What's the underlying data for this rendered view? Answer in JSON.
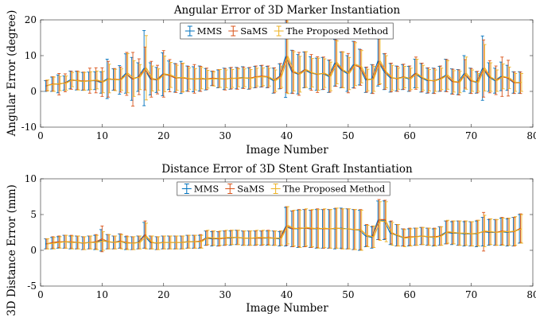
{
  "chart_data": [
    {
      "type": "line",
      "title": "Angular Error of 3D Marker Instantiation",
      "xlabel": "Image Number",
      "ylabel": "Angular Error (degree)",
      "xlim": [
        0,
        80
      ],
      "ylim": [
        -10,
        20
      ],
      "xticks": [
        0,
        10,
        20,
        30,
        40,
        50,
        60,
        70,
        80
      ],
      "yticks": [
        -10,
        0,
        10,
        20
      ],
      "legend_position": "top-center",
      "x_start": 1,
      "series": [
        {
          "name": "MMS",
          "color": "#0072BD",
          "values": [
            1.5,
            2.0,
            2.1,
            2.3,
            3.2,
            3.0,
            2.8,
            2.9,
            3.0,
            2.5,
            3.5,
            3.3,
            3.2,
            5.0,
            3.5,
            4.0,
            6.5,
            3.5,
            3.2,
            4.8,
            4.5,
            3.8,
            3.9,
            3.6,
            3.4,
            3.6,
            3.4,
            3.6,
            3.5,
            3.5,
            3.6,
            3.7,
            3.9,
            3.6,
            4.0,
            4.2,
            4.0,
            3.0,
            4.2,
            9.8,
            5.5,
            4.8,
            6.0,
            5.2,
            4.8,
            5.0,
            4.2,
            8.0,
            6.0,
            5.0,
            7.5,
            6.8,
            3.2,
            3.5,
            8.5,
            5.5,
            3.8,
            3.6,
            4.0,
            3.5,
            5.0,
            3.8,
            3.0,
            3.0,
            3.5,
            4.5,
            2.8,
            2.6,
            5.0,
            3.0,
            2.5,
            6.5,
            4.0,
            3.0,
            4.2,
            3.8,
            2.5,
            2.5
          ],
          "errors": [
            1.5,
            2.0,
            2.5,
            2.0,
            2.5,
            2.6,
            2.5,
            2.5,
            2.5,
            3.0,
            5.5,
            3.0,
            4.0,
            5.5,
            6.0,
            4.0,
            10.5,
            4.5,
            3.5,
            6.0,
            4.0,
            4.0,
            4.5,
            3.5,
            3.5,
            3.5,
            3.0,
            2.0,
            2.5,
            3.0,
            3.0,
            3.0,
            3.0,
            3.0,
            3.0,
            3.0,
            3.0,
            3.5,
            3.5,
            11.5,
            6.0,
            5.5,
            5.0,
            4.5,
            4.5,
            4.5,
            4.5,
            6.5,
            5.0,
            5.0,
            6.5,
            5.0,
            3.5,
            4.0,
            7.0,
            5.0,
            4.0,
            3.5,
            3.5,
            3.5,
            4.0,
            4.0,
            3.5,
            3.5,
            3.5,
            4.5,
            3.5,
            3.5,
            5.0,
            3.5,
            3.0,
            9.0,
            4.0,
            3.5,
            4.0,
            3.5,
            3.0,
            3.0
          ]
        },
        {
          "name": "SaMS",
          "color": "#D95319",
          "values": [
            1.6,
            2.1,
            2.0,
            2.4,
            3.1,
            3.1,
            2.9,
            3.0,
            3.1,
            2.6,
            3.4,
            3.4,
            3.3,
            4.9,
            3.4,
            4.1,
            6.4,
            3.4,
            3.3,
            4.9,
            4.4,
            3.7,
            3.8,
            3.5,
            3.5,
            3.5,
            3.5,
            3.7,
            3.6,
            3.4,
            3.7,
            3.6,
            3.8,
            3.7,
            4.1,
            4.3,
            4.1,
            3.1,
            4.3,
            9.7,
            5.4,
            4.9,
            6.1,
            5.3,
            4.7,
            5.1,
            4.3,
            7.9,
            6.1,
            5.1,
            7.4,
            6.7,
            3.3,
            3.4,
            8.4,
            5.6,
            3.9,
            3.5,
            4.1,
            3.6,
            5.1,
            3.9,
            3.1,
            2.9,
            3.6,
            4.4,
            2.7,
            2.5,
            4.9,
            2.9,
            2.6,
            6.4,
            4.1,
            3.1,
            4.1,
            3.7,
            2.4,
            2.4
          ],
          "errors": [
            1.5,
            2.0,
            3.0,
            2.5,
            2.5,
            2.6,
            2.5,
            3.5,
            3.5,
            4.0,
            5.0,
            3.0,
            3.5,
            6.0,
            7.5,
            5.0,
            6.0,
            5.0,
            4.0,
            6.5,
            4.5,
            4.0,
            4.0,
            3.5,
            4.0,
            3.5,
            3.0,
            2.0,
            2.5,
            3.0,
            3.0,
            3.0,
            3.0,
            3.0,
            3.0,
            3.0,
            3.0,
            3.5,
            3.5,
            10.0,
            6.0,
            6.0,
            5.0,
            5.0,
            5.0,
            4.5,
            4.5,
            6.5,
            5.0,
            5.5,
            6.5,
            5.0,
            3.5,
            4.0,
            6.5,
            5.0,
            4.0,
            3.5,
            3.5,
            3.5,
            4.5,
            4.0,
            3.5,
            3.5,
            3.5,
            4.5,
            3.5,
            3.5,
            4.0,
            3.5,
            3.0,
            8.0,
            4.5,
            4.0,
            5.5,
            5.0,
            3.0,
            3.0
          ]
        },
        {
          "name": "The Proposed Method",
          "color": "#EDB120",
          "values": [
            1.7,
            2.0,
            2.2,
            2.3,
            3.3,
            2.9,
            2.8,
            3.0,
            3.2,
            2.6,
            3.6,
            3.2,
            3.3,
            5.1,
            3.6,
            4.0,
            6.6,
            3.6,
            3.3,
            4.9,
            4.6,
            3.8,
            3.9,
            3.6,
            3.4,
            3.7,
            3.4,
            3.5,
            3.6,
            3.5,
            3.6,
            3.8,
            3.8,
            3.6,
            4.0,
            4.1,
            4.0,
            3.0,
            4.1,
            9.9,
            5.6,
            4.8,
            6.1,
            5.2,
            4.8,
            5.1,
            4.2,
            8.1,
            6.0,
            5.0,
            7.6,
            6.9,
            3.2,
            3.5,
            8.6,
            5.5,
            3.8,
            3.6,
            4.0,
            3.5,
            5.0,
            3.8,
            3.1,
            3.0,
            3.5,
            4.6,
            2.8,
            2.6,
            5.1,
            3.0,
            2.5,
            6.6,
            4.0,
            3.0,
            4.2,
            3.8,
            2.5,
            2.5
          ],
          "errors": [
            1.5,
            2.0,
            2.0,
            2.0,
            2.0,
            2.5,
            2.5,
            2.5,
            2.5,
            3.0,
            4.0,
            3.0,
            3.0,
            5.5,
            5.0,
            3.5,
            9.0,
            3.5,
            3.0,
            5.0,
            3.5,
            3.5,
            4.0,
            3.0,
            3.0,
            3.0,
            2.5,
            2.0,
            2.5,
            2.5,
            2.5,
            2.5,
            2.5,
            2.5,
            2.5,
            2.5,
            2.5,
            3.0,
            3.0,
            10.5,
            5.5,
            5.0,
            5.0,
            4.0,
            4.5,
            4.0,
            4.0,
            6.0,
            5.0,
            4.5,
            6.0,
            4.5,
            3.0,
            3.5,
            6.5,
            4.5,
            3.5,
            3.0,
            3.0,
            3.0,
            4.0,
            3.5,
            3.0,
            3.0,
            3.0,
            4.0,
            3.0,
            3.0,
            4.5,
            3.0,
            2.5,
            6.5,
            4.0,
            3.0,
            3.5,
            3.0,
            2.5,
            2.5
          ]
        }
      ]
    },
    {
      "type": "line",
      "title": "Distance Error of 3D Stent Graft Instantiation",
      "xlabel": "Image Number",
      "ylabel": "3D Distance Error (mm)",
      "xlim": [
        0,
        80
      ],
      "ylim": [
        -5,
        10
      ],
      "xticks": [
        0,
        10,
        20,
        30,
        40,
        50,
        60,
        70,
        80
      ],
      "yticks": [
        -5,
        0,
        5,
        10
      ],
      "legend_position": "top-center",
      "x_start": 1,
      "series": [
        {
          "name": "MMS",
          "color": "#0072BD",
          "values": [
            0.9,
            1.0,
            1.1,
            1.2,
            1.1,
            1.1,
            1.0,
            1.1,
            1.1,
            1.4,
            1.2,
            1.1,
            1.3,
            1.0,
            1.0,
            1.1,
            2.1,
            1.1,
            1.0,
            1.1,
            1.1,
            1.1,
            1.1,
            1.2,
            1.2,
            1.2,
            1.7,
            1.6,
            1.6,
            1.7,
            1.7,
            1.8,
            1.7,
            1.7,
            1.7,
            1.7,
            1.7,
            1.7,
            1.6,
            3.3,
            3.0,
            3.0,
            3.1,
            3.0,
            3.0,
            3.0,
            3.0,
            3.0,
            3.1,
            3.0,
            2.9,
            2.8,
            2.0,
            1.8,
            4.2,
            4.2,
            2.4,
            2.1,
            1.8,
            1.8,
            1.9,
            2.0,
            1.9,
            1.8,
            2.0,
            2.5,
            2.4,
            2.4,
            2.3,
            2.3,
            2.3,
            2.6,
            2.5,
            2.5,
            2.6,
            2.5,
            2.6,
            3.0
          ],
          "errors": [
            0.7,
            0.8,
            0.8,
            0.9,
            0.9,
            0.9,
            0.9,
            0.9,
            1.0,
            1.5,
            1.0,
            0.9,
            1.0,
            0.9,
            0.9,
            0.9,
            1.8,
            0.9,
            0.9,
            0.9,
            0.9,
            0.9,
            0.9,
            0.9,
            0.9,
            0.9,
            1.0,
            1.0,
            1.0,
            1.0,
            1.0,
            1.0,
            1.0,
            1.0,
            1.0,
            1.0,
            1.0,
            1.0,
            1.0,
            2.7,
            2.5,
            2.6,
            2.6,
            2.6,
            2.7,
            2.7,
            2.7,
            2.8,
            2.8,
            2.8,
            2.8,
            2.8,
            1.5,
            1.5,
            2.7,
            2.7,
            1.6,
            1.5,
            1.2,
            1.2,
            1.2,
            1.2,
            1.2,
            1.2,
            1.3,
            1.6,
            1.6,
            1.7,
            1.7,
            1.7,
            1.8,
            2.0,
            1.8,
            1.8,
            1.9,
            1.9,
            2.0,
            2.0
          ]
        },
        {
          "name": "SaMS",
          "color": "#D95319",
          "values": [
            0.9,
            1.1,
            1.2,
            1.2,
            1.2,
            1.1,
            1.0,
            1.1,
            1.2,
            1.6,
            1.2,
            1.1,
            1.3,
            1.1,
            1.0,
            1.1,
            2.2,
            1.1,
            1.0,
            1.1,
            1.1,
            1.1,
            1.1,
            1.2,
            1.2,
            1.3,
            1.7,
            1.7,
            1.6,
            1.7,
            1.8,
            1.8,
            1.7,
            1.7,
            1.7,
            1.7,
            1.8,
            1.7,
            1.7,
            3.4,
            3.0,
            3.1,
            3.1,
            3.0,
            3.1,
            3.0,
            3.0,
            3.1,
            3.0,
            3.0,
            2.9,
            2.9,
            2.1,
            1.9,
            4.3,
            4.3,
            2.5,
            2.1,
            1.8,
            1.9,
            1.9,
            2.0,
            1.9,
            1.9,
            2.0,
            2.5,
            2.5,
            2.4,
            2.4,
            2.3,
            2.4,
            2.6,
            2.6,
            2.5,
            2.7,
            2.6,
            2.6,
            3.1
          ],
          "errors": [
            0.7,
            0.8,
            0.8,
            0.9,
            0.9,
            0.9,
            0.9,
            0.9,
            1.0,
            1.8,
            1.0,
            0.9,
            1.0,
            0.9,
            0.9,
            0.9,
            1.9,
            0.9,
            0.9,
            0.9,
            0.9,
            0.9,
            0.9,
            0.9,
            0.9,
            0.9,
            1.0,
            1.0,
            1.0,
            1.0,
            1.0,
            1.0,
            1.0,
            1.0,
            1.0,
            1.0,
            1.0,
            1.0,
            1.0,
            2.7,
            2.5,
            2.6,
            2.6,
            2.6,
            2.7,
            2.7,
            2.7,
            2.8,
            2.8,
            2.8,
            2.8,
            2.8,
            1.5,
            1.5,
            2.8,
            2.7,
            1.6,
            1.5,
            1.2,
            1.2,
            1.2,
            1.2,
            1.2,
            1.2,
            1.3,
            1.6,
            1.6,
            1.7,
            1.7,
            1.7,
            1.8,
            2.7,
            1.8,
            1.8,
            1.9,
            1.9,
            2.0,
            2.0
          ]
        },
        {
          "name": "The Proposed Method",
          "color": "#EDB120",
          "values": [
            0.9,
            1.0,
            1.1,
            1.2,
            1.1,
            1.1,
            1.0,
            1.1,
            1.1,
            1.3,
            1.2,
            1.1,
            1.2,
            1.0,
            1.0,
            1.1,
            2.0,
            1.1,
            1.0,
            1.1,
            1.1,
            1.1,
            1.1,
            1.2,
            1.2,
            1.2,
            1.8,
            1.7,
            1.7,
            1.8,
            1.8,
            1.8,
            1.7,
            1.7,
            1.8,
            1.8,
            1.7,
            1.7,
            1.7,
            3.5,
            3.1,
            3.0,
            3.2,
            3.1,
            3.0,
            3.1,
            3.0,
            3.1,
            3.0,
            3.0,
            2.9,
            2.8,
            2.0,
            1.9,
            4.1,
            4.0,
            2.3,
            2.1,
            1.7,
            1.8,
            1.9,
            2.0,
            1.9,
            1.8,
            2.0,
            2.6,
            2.5,
            2.4,
            2.4,
            2.3,
            2.4,
            2.7,
            2.6,
            2.5,
            2.6,
            2.6,
            2.7,
            3.0
          ],
          "errors": [
            0.7,
            0.8,
            0.8,
            0.9,
            0.9,
            0.9,
            0.9,
            0.9,
            1.0,
            1.3,
            1.0,
            0.9,
            1.0,
            0.9,
            0.9,
            0.9,
            1.8,
            0.9,
            0.9,
            0.9,
            0.9,
            0.9,
            0.9,
            0.9,
            0.9,
            0.9,
            1.0,
            1.0,
            1.0,
            1.0,
            1.0,
            1.0,
            1.0,
            1.0,
            1.0,
            1.0,
            1.0,
            1.0,
            1.0,
            2.6,
            2.5,
            2.6,
            2.6,
            2.6,
            2.7,
            2.7,
            2.7,
            2.8,
            2.8,
            2.8,
            2.8,
            2.8,
            1.5,
            1.5,
            2.7,
            2.8,
            1.6,
            1.5,
            1.2,
            1.2,
            1.2,
            1.2,
            1.2,
            1.2,
            1.3,
            1.6,
            1.6,
            1.7,
            1.7,
            1.7,
            1.8,
            2.2,
            1.8,
            1.8,
            1.9,
            1.9,
            2.0,
            2.0
          ]
        }
      ]
    }
  ]
}
